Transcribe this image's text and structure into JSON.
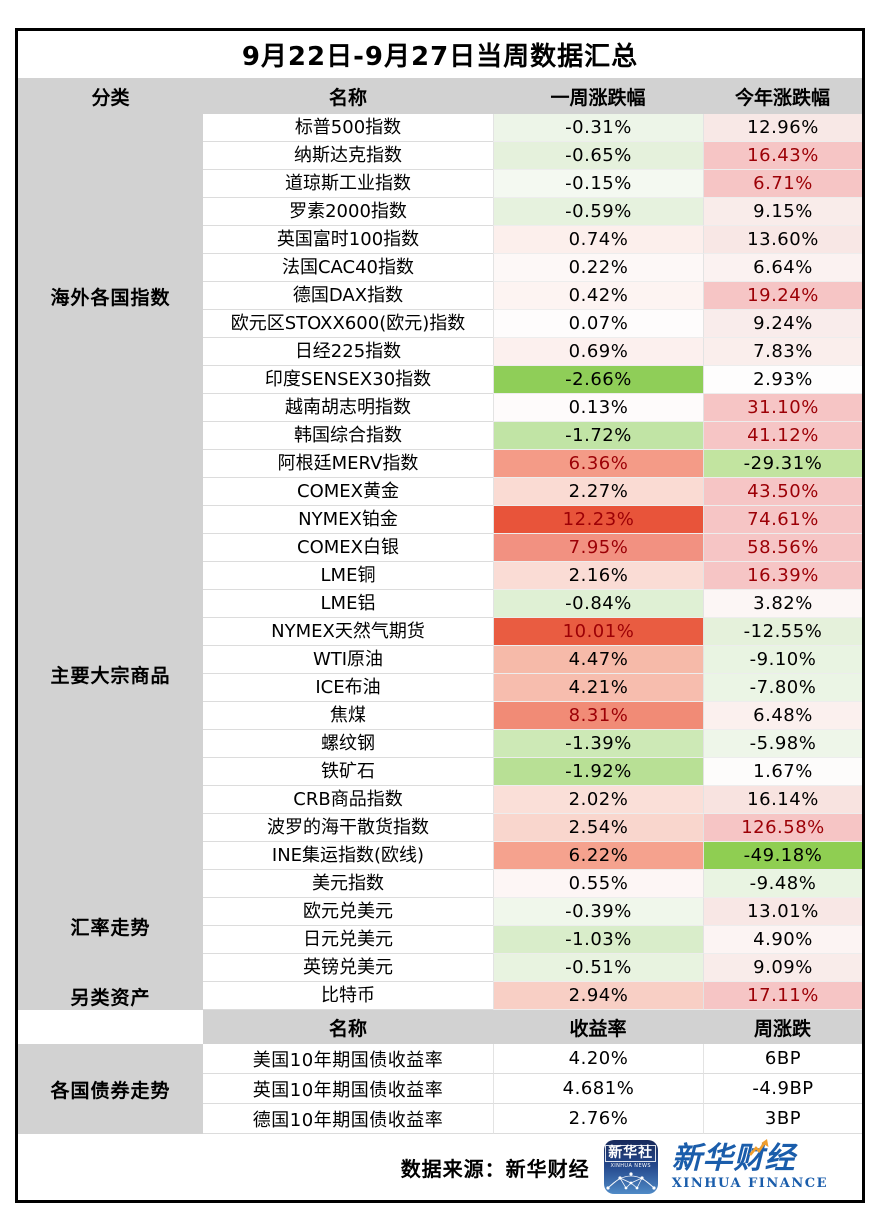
{
  "title": "9月22日-9月27日当周数据汇总",
  "colors": {
    "header_bg": "#d2d2d2",
    "border": "#000000",
    "dark_red_text": "#9c0006",
    "highlight_pink_bg": "#f6c5c5",
    "strong_red_bg": "#e8543a",
    "strong_green_bg": "#8fce55",
    "logo_blue": "#1a5dab",
    "logo_arrow_orange": "#f09e2e"
  },
  "main_table": {
    "headers": {
      "category": "分类",
      "name": "名称",
      "week": "一周涨跌幅",
      "ytd": "今年涨跌幅"
    },
    "categories": [
      {
        "label": "海外各国指数",
        "rows": 13
      },
      {
        "label": "主要大宗商品",
        "rows": 14
      },
      {
        "label": "汇率走势",
        "rows": 4
      },
      {
        "label": "另类资产",
        "rows": 1
      }
    ],
    "rows": [
      {
        "name": "标普500指数",
        "week": {
          "value": "-0.31%",
          "bg": "#edf5e8"
        },
        "ytd": {
          "value": "12.96%",
          "bg": "#f8e8e6"
        }
      },
      {
        "name": "纳斯达克指数",
        "week": {
          "value": "-0.65%",
          "bg": "#e5f1dc"
        },
        "ytd": {
          "value": "16.43%",
          "bg": "#f6c5c5",
          "color": "#9c0006"
        }
      },
      {
        "name": "道琼斯工业指数",
        "week": {
          "value": "-0.15%",
          "bg": "#f4f9f1"
        },
        "ytd": {
          "value": "6.71%",
          "bg": "#f6c5c5",
          "color": "#9c0006"
        }
      },
      {
        "name": "罗素2000指数",
        "week": {
          "value": "-0.59%",
          "bg": "#e6f2de"
        },
        "ytd": {
          "value": "9.15%",
          "bg": "#f9ecea"
        }
      },
      {
        "name": "英国富时100指数",
        "week": {
          "value": "0.74%",
          "bg": "#fcefec"
        },
        "ytd": {
          "value": "13.60%",
          "bg": "#f8e7e5"
        }
      },
      {
        "name": "法国CAC40指数",
        "week": {
          "value": "0.22%",
          "bg": "#fdf8f7"
        },
        "ytd": {
          "value": "6.64%",
          "bg": "#fbf2f1"
        }
      },
      {
        "name": "德国DAX指数",
        "week": {
          "value": "0.42%",
          "bg": "#fdf4f2"
        },
        "ytd": {
          "value": "19.24%",
          "bg": "#f6c5c5",
          "color": "#9c0006"
        }
      },
      {
        "name": "欧元区STOXX600(欧元)指数",
        "week": {
          "value": "0.07%",
          "bg": "#fefcfc"
        },
        "ytd": {
          "value": "9.24%",
          "bg": "#f9eceb"
        }
      },
      {
        "name": "日经225指数",
        "week": {
          "value": "0.69%",
          "bg": "#fcf0ee"
        },
        "ytd": {
          "value": "7.83%",
          "bg": "#faeeec"
        }
      },
      {
        "name": "印度SENSEX30指数",
        "week": {
          "value": "-2.66%",
          "bg": "#8fce58"
        },
        "ytd": {
          "value": "2.93%",
          "bg": "#fefdfd"
        }
      },
      {
        "name": "越南胡志明指数",
        "week": {
          "value": "0.13%",
          "bg": "#fefbfb"
        },
        "ytd": {
          "value": "31.10%",
          "bg": "#f6c5c5",
          "color": "#9c0006"
        }
      },
      {
        "name": "韩国综合指数",
        "week": {
          "value": "-1.72%",
          "bg": "#c1e4a5"
        },
        "ytd": {
          "value": "41.12%",
          "bg": "#f6c5c5",
          "color": "#9c0006"
        }
      },
      {
        "name": "阿根廷MERV指数",
        "week": {
          "value": "6.36%",
          "bg": "#f49b87",
          "color": "#9c0006"
        },
        "ytd": {
          "value": "-29.31%",
          "bg": "#c2e4a0"
        }
      },
      {
        "name": "COMEX黄金",
        "week": {
          "value": "2.27%",
          "bg": "#fadbd3"
        },
        "ytd": {
          "value": "43.50%",
          "bg": "#f6c5c5",
          "color": "#9c0006"
        }
      },
      {
        "name": "NYMEX铂金",
        "week": {
          "value": "12.23%",
          "bg": "#e8543a",
          "color": "#9c0006"
        },
        "ytd": {
          "value": "74.61%",
          "bg": "#f6c5c5",
          "color": "#9c0006"
        }
      },
      {
        "name": "COMEX白银",
        "week": {
          "value": "7.95%",
          "bg": "#f29181",
          "color": "#9c0006"
        },
        "ytd": {
          "value": "58.56%",
          "bg": "#f6c5c5",
          "color": "#9c0006"
        }
      },
      {
        "name": "LME铜",
        "week": {
          "value": "2.16%",
          "bg": "#fadcd5"
        },
        "ytd": {
          "value": "16.39%",
          "bg": "#f6c5c5",
          "color": "#9c0006"
        }
      },
      {
        "name": "LME铝",
        "week": {
          "value": "-0.84%",
          "bg": "#dff0d4"
        },
        "ytd": {
          "value": "3.82%",
          "bg": "#fcf6f5"
        }
      },
      {
        "name": "NYMEX天然气期货",
        "week": {
          "value": "10.01%",
          "bg": "#e95c41",
          "color": "#9c0006"
        },
        "ytd": {
          "value": "-12.55%",
          "bg": "#e5f1db"
        }
      },
      {
        "name": "WTI原油",
        "week": {
          "value": "4.47%",
          "bg": "#f6baa9"
        },
        "ytd": {
          "value": "-9.10%",
          "bg": "#e9f4e2"
        }
      },
      {
        "name": "ICE布油",
        "week": {
          "value": "4.21%",
          "bg": "#f7bdae"
        },
        "ytd": {
          "value": "-7.80%",
          "bg": "#ebf5e5"
        }
      },
      {
        "name": "焦煤",
        "week": {
          "value": "8.31%",
          "bg": "#f18b76",
          "color": "#9c0006"
        },
        "ytd": {
          "value": "6.48%",
          "bg": "#fbf0ee"
        }
      },
      {
        "name": "螺纹钢",
        "week": {
          "value": "-1.39%",
          "bg": "#cde9b6"
        },
        "ytd": {
          "value": "-5.98%",
          "bg": "#eef6e9"
        }
      },
      {
        "name": "铁矿石",
        "week": {
          "value": "-1.92%",
          "bg": "#b8e095"
        },
        "ytd": {
          "value": "1.67%",
          "bg": "#fdfcfb"
        }
      },
      {
        "name": "CRB商品指数",
        "week": {
          "value": "2.02%",
          "bg": "#fadfd8"
        },
        "ytd": {
          "value": "16.14%",
          "bg": "#f8e3e0"
        }
      },
      {
        "name": "波罗的海干散货指数",
        "week": {
          "value": "2.54%",
          "bg": "#f9d6cd"
        },
        "ytd": {
          "value": "126.58%",
          "bg": "#f6c5c5",
          "color": "#9c0006"
        }
      },
      {
        "name": "INE集运指数(欧线)",
        "week": {
          "value": "6.22%",
          "bg": "#f5a28e"
        },
        "ytd": {
          "value": "-49.18%",
          "bg": "#8fce52"
        }
      },
      {
        "name": "美元指数",
        "week": {
          "value": "0.55%",
          "bg": "#fdf6f5"
        },
        "ytd": {
          "value": "-9.48%",
          "bg": "#e9f4e2"
        }
      },
      {
        "name": "欧元兑美元",
        "week": {
          "value": "-0.39%",
          "bg": "#f0f7eb"
        },
        "ytd": {
          "value": "13.01%",
          "bg": "#f8e7e5"
        }
      },
      {
        "name": "日元兑美元",
        "week": {
          "value": "-1.03%",
          "bg": "#d9edca"
        },
        "ytd": {
          "value": "4.90%",
          "bg": "#fcf4f3"
        }
      },
      {
        "name": "英镑兑美元",
        "week": {
          "value": "-0.51%",
          "bg": "#e8f3e0"
        },
        "ytd": {
          "value": "9.09%",
          "bg": "#f9ecea"
        }
      },
      {
        "name": "比特币",
        "week": {
          "value": "2.94%",
          "bg": "#f8cfc5"
        },
        "ytd": {
          "value": "17.11%",
          "bg": "#f6c5c5",
          "color": "#9c0006"
        }
      }
    ]
  },
  "bond_table": {
    "headers": {
      "name": "名称",
      "yield": "收益率",
      "week_change": "周涨跌"
    },
    "category": "各国债券走势",
    "rows": [
      {
        "name": "美国10年期国债收益率",
        "yield": "4.20%",
        "week_change": "6BP"
      },
      {
        "name": "英国10年期国债收益率",
        "yield": "4.681%",
        "week_change": "-4.9BP"
      },
      {
        "name": "德国10年期国债收益率",
        "yield": "2.76%",
        "week_change": "3BP"
      }
    ]
  },
  "footer": {
    "source_label": "数据来源：新华财经",
    "logo_news": {
      "line1": "新华社",
      "line2": "XINHUA NEWS"
    },
    "logo_finance": {
      "cn": "新华财经",
      "en": "XINHUA FINANCE"
    }
  },
  "chart_data": {
    "type": "table",
    "title": "9月22日-9月27日当周数据汇总",
    "columns": [
      "分类",
      "名称",
      "一周涨跌幅(%)",
      "今年涨跌幅(%)"
    ],
    "rows": [
      [
        "海外各国指数",
        "标普500指数",
        -0.31,
        12.96
      ],
      [
        "海外各国指数",
        "纳斯达克指数",
        -0.65,
        16.43
      ],
      [
        "海外各国指数",
        "道琼斯工业指数",
        -0.15,
        6.71
      ],
      [
        "海外各国指数",
        "罗素2000指数",
        -0.59,
        9.15
      ],
      [
        "海外各国指数",
        "英国富时100指数",
        0.74,
        13.6
      ],
      [
        "海外各国指数",
        "法国CAC40指数",
        0.22,
        6.64
      ],
      [
        "海外各国指数",
        "德国DAX指数",
        0.42,
        19.24
      ],
      [
        "海外各国指数",
        "欧元区STOXX600(欧元)指数",
        0.07,
        9.24
      ],
      [
        "海外各国指数",
        "日经225指数",
        0.69,
        7.83
      ],
      [
        "海外各国指数",
        "印度SENSEX30指数",
        -2.66,
        2.93
      ],
      [
        "海外各国指数",
        "越南胡志明指数",
        0.13,
        31.1
      ],
      [
        "海外各国指数",
        "韩国综合指数",
        -1.72,
        41.12
      ],
      [
        "海外各国指数",
        "阿根廷MERV指数",
        6.36,
        -29.31
      ],
      [
        "主要大宗商品",
        "COMEX黄金",
        2.27,
        43.5
      ],
      [
        "主要大宗商品",
        "NYMEX铂金",
        12.23,
        74.61
      ],
      [
        "主要大宗商品",
        "COMEX白银",
        7.95,
        58.56
      ],
      [
        "主要大宗商品",
        "LME铜",
        2.16,
        16.39
      ],
      [
        "主要大宗商品",
        "LME铝",
        -0.84,
        3.82
      ],
      [
        "主要大宗商品",
        "NYMEX天然气期货",
        10.01,
        -12.55
      ],
      [
        "主要大宗商品",
        "WTI原油",
        4.47,
        -9.1
      ],
      [
        "主要大宗商品",
        "ICE布油",
        4.21,
        -7.8
      ],
      [
        "主要大宗商品",
        "焦煤",
        8.31,
        6.48
      ],
      [
        "主要大宗商品",
        "螺纹钢",
        -1.39,
        -5.98
      ],
      [
        "主要大宗商品",
        "铁矿石",
        -1.92,
        1.67
      ],
      [
        "主要大宗商品",
        "CRB商品指数",
        2.02,
        16.14
      ],
      [
        "主要大宗商品",
        "波罗的海干散货指数",
        2.54,
        126.58
      ],
      [
        "主要大宗商品",
        "INE集运指数(欧线)",
        6.22,
        -49.18
      ],
      [
        "汇率走势",
        "美元指数",
        0.55,
        -9.48
      ],
      [
        "汇率走势",
        "欧元兑美元",
        -0.39,
        13.01
      ],
      [
        "汇率走势",
        "日元兑美元",
        -1.03,
        4.9
      ],
      [
        "汇率走势",
        "英镑兑美元",
        -0.51,
        9.09
      ],
      [
        "另类资产",
        "比特币",
        2.94,
        17.11
      ]
    ],
    "bond_columns": [
      "分类",
      "名称",
      "收益率",
      "周涨跌"
    ],
    "bond_rows": [
      [
        "各国债券走势",
        "美国10年期国债收益率",
        "4.20%",
        "6BP"
      ],
      [
        "各国债券走势",
        "英国10年期国债收益率",
        "4.681%",
        "-4.9BP"
      ],
      [
        "各国债券走势",
        "德国10年期国债收益率",
        "2.76%",
        "3BP"
      ]
    ],
    "color_coding": "green = decline, red/pink = gain; dark-red text on pink = highlighted gain"
  }
}
